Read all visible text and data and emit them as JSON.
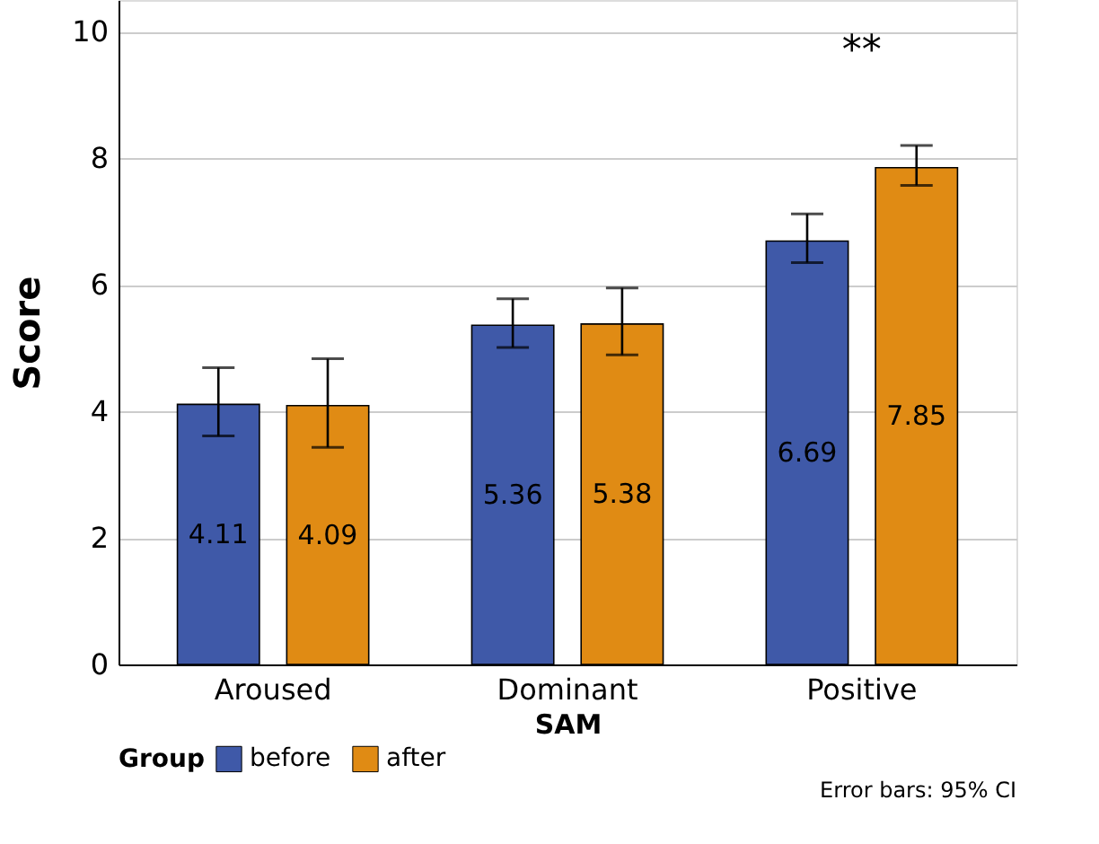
{
  "chart_data": {
    "type": "bar",
    "xlabel": "SAM",
    "ylabel": "Score",
    "legend_title": "Group",
    "categories": [
      "Aroused",
      "Dominant",
      "Positive"
    ],
    "series": [
      {
        "name": "before",
        "color": "#3f59a8",
        "values": [
          4.11,
          5.36,
          6.69
        ],
        "errors": [
          [
            3.61,
            4.69
          ],
          [
            5.01,
            5.78
          ],
          [
            6.35,
            7.12
          ]
        ]
      },
      {
        "name": "after",
        "color": "#e08b14",
        "values": [
          4.09,
          5.38,
          7.85
        ],
        "errors": [
          [
            3.43,
            4.83
          ],
          [
            4.89,
            5.95
          ],
          [
            7.57,
            8.2
          ]
        ]
      }
    ],
    "ylim": [
      0,
      10.5
    ],
    "yticks": [
      0,
      2,
      4,
      6,
      8,
      10
    ],
    "grid": "y",
    "legend": "bottom",
    "data_labels": true,
    "annotations": [
      "**",
      "Error bars: 95% CI"
    ]
  }
}
